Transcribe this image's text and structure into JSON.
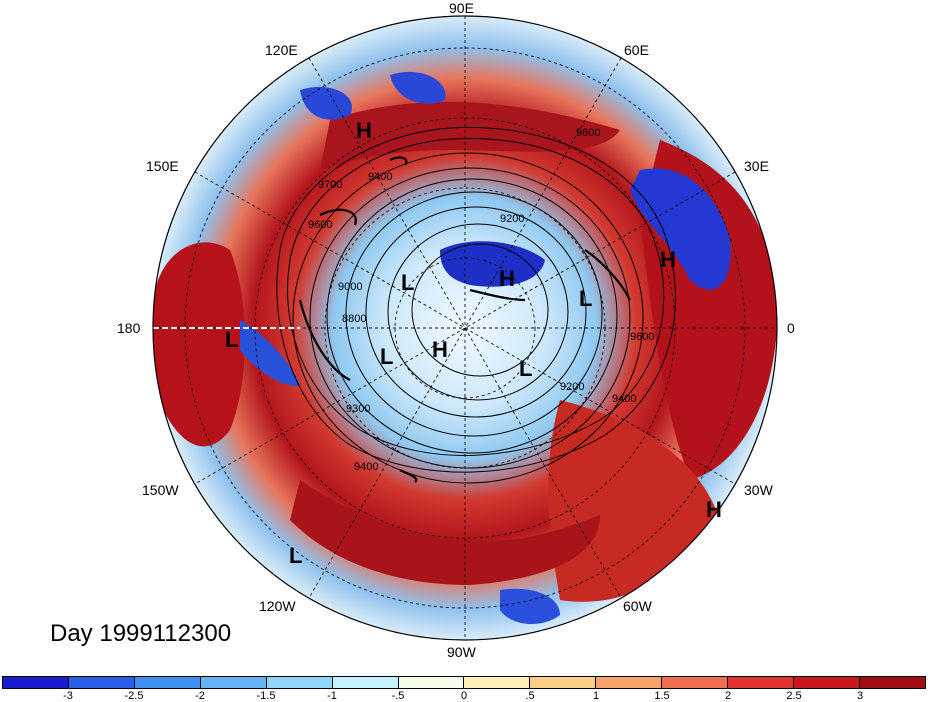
{
  "title": "Day 1999112300",
  "longitude_labels": {
    "lon_90e": "90E",
    "lon_120e": "120E",
    "lon_60e": "60E",
    "lon_150e": "150E",
    "lon_30e": "30E",
    "lon_180": "180",
    "lon_0": "0",
    "lon_150w": "150W",
    "lon_30w": "30W",
    "lon_120w": "120W",
    "lon_60w": "60W",
    "lon_90w": "90W"
  },
  "pressure_centers": {
    "h1": "H",
    "h2": "H",
    "h3": "H",
    "h4": "H",
    "h5": "H",
    "l1": "L",
    "l2": "L",
    "l3": "L",
    "l4": "L",
    "l5": "L",
    "l6": "L"
  },
  "contour_labels": {
    "c9600a": "9600",
    "c9700": "9700",
    "c9400a": "9400",
    "c9600b": "9600",
    "c9200a": "9200",
    "c8800": "8800",
    "c9300": "9300",
    "c9400b": "9400",
    "c9400c": "9400",
    "c9600c": "9600",
    "c9200b": "9200",
    "c9000": "9000"
  },
  "colorbar": {
    "colors": [
      "#1a1ad0",
      "#2a5ee6",
      "#3f8ff0",
      "#66b3f5",
      "#8fd6fa",
      "#c4f2fc",
      "#f5fbe9",
      "#fcf0b8",
      "#f9cf86",
      "#f4a36a",
      "#ee6f52",
      "#e23232",
      "#c8181e",
      "#9f0e14"
    ],
    "ticks": {
      "t1": "-3",
      "t2": "-2.5",
      "t3": "-2",
      "t4": "-1.5",
      "t5": "-1",
      "t6": "-.5",
      "t7": "0",
      "t8": ".5",
      "t9": "1",
      "t10": "1.5",
      "t11": "2",
      "t12": "2.5",
      "t13": "3"
    }
  }
}
